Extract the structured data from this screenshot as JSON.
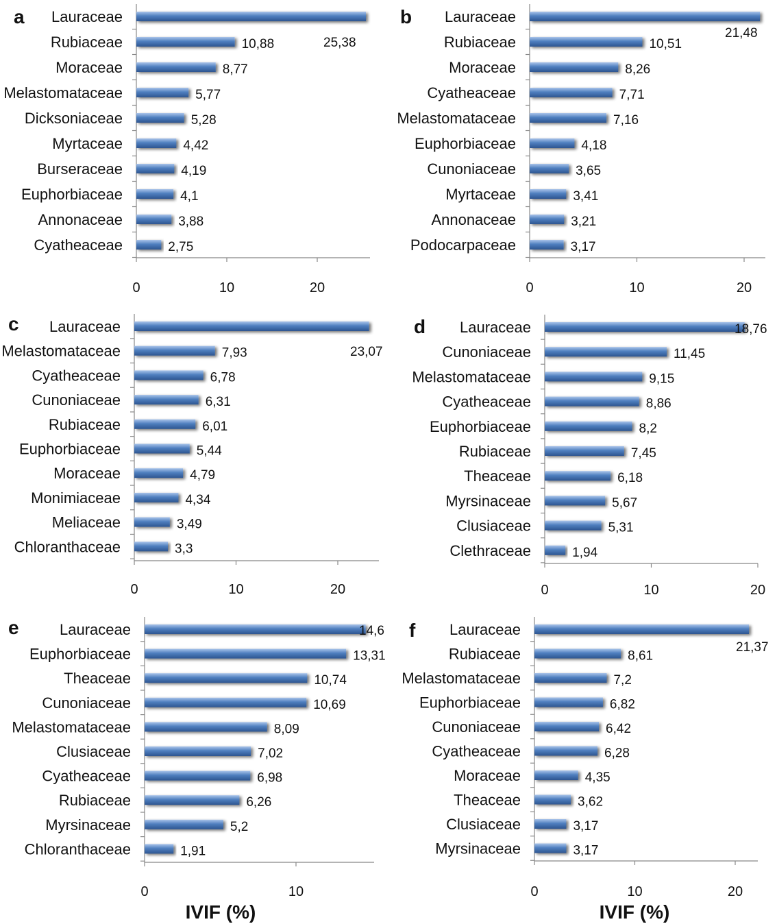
{
  "colors": {
    "bar": "#4f7fbf",
    "bar_dark": "#2d5590",
    "bar_light": "#9dbbe4",
    "axis": "#888888",
    "text": "#111111"
  },
  "xlabels": [
    "IVIF (%)",
    "IVIF (%)"
  ],
  "chart_data": [
    {
      "panel": "a",
      "type": "bar",
      "orientation": "horizontal",
      "categories": [
        "Lauraceae",
        "Rubiaceae",
        "Moraceae",
        "Melastomataceae",
        "Dicksoniaceae",
        "Myrtaceae",
        "Burseraceae",
        "Euphorbiaceae",
        "Annonaceae",
        "Cyatheaceae"
      ],
      "values": [
        25.38,
        10.88,
        8.77,
        5.77,
        5.28,
        4.42,
        4.19,
        4.1,
        3.88,
        2.75
      ],
      "value_labels": [
        "25,38",
        "10,88",
        "8,77",
        "5,77",
        "5,28",
        "4,42",
        "4,19",
        "4,1",
        "3,88",
        "2,75"
      ],
      "xticks": [
        "0",
        "10",
        "20"
      ],
      "xlim": [
        0,
        26
      ],
      "xlabel": "",
      "grid": false
    },
    {
      "panel": "b",
      "type": "bar",
      "orientation": "horizontal",
      "categories": [
        "Lauraceae",
        "Rubiaceae",
        "Moraceae",
        "Cyatheaceae",
        "Melastomataceae",
        "Euphorbiaceae",
        "Cunoniaceae",
        "Myrtaceae",
        "Annonaceae",
        "Podocarpaceae"
      ],
      "values": [
        21.48,
        10.51,
        8.26,
        7.71,
        7.16,
        4.18,
        3.65,
        3.41,
        3.21,
        3.17
      ],
      "value_labels": [
        "21,48",
        "10,51",
        "8,26",
        "7,71",
        "7,16",
        "4,18",
        "3,65",
        "3,41",
        "3,21",
        "3,17"
      ],
      "xticks": [
        "0",
        "10",
        "20"
      ],
      "xlim": [
        0,
        22
      ],
      "xlabel": "",
      "grid": false
    },
    {
      "panel": "c",
      "type": "bar",
      "orientation": "horizontal",
      "categories": [
        "Lauraceae",
        "Melastomataceae",
        "Cyatheaceae",
        "Cunoniaceae",
        "Rubiaceae",
        "Euphorbiaceae",
        "Moraceae",
        "Monimiaceae",
        "Meliaceae",
        "Chloranthaceae"
      ],
      "values": [
        23.07,
        7.93,
        6.78,
        6.31,
        6.01,
        5.44,
        4.79,
        4.34,
        3.49,
        3.3
      ],
      "value_labels": [
        "23,07",
        "7,93",
        "6,78",
        "6,31",
        "6,01",
        "5,44",
        "4,79",
        "4,34",
        "3,49",
        "3,3"
      ],
      "xticks": [
        "0",
        "10",
        "20"
      ],
      "xlim": [
        0,
        24
      ],
      "xlabel": "",
      "grid": false
    },
    {
      "panel": "d",
      "type": "bar",
      "orientation": "horizontal",
      "categories": [
        "Lauraceae",
        "Cunoniaceae",
        "Melastomataceae",
        "Cyatheaceae",
        "Euphorbiaceae",
        "Rubiaceae",
        "Theaceae",
        "Myrsinaceae",
        "Clusiaceae",
        "Clethraceae"
      ],
      "values": [
        18.76,
        11.45,
        9.15,
        8.86,
        8.2,
        7.45,
        6.18,
        5.67,
        5.31,
        1.94
      ],
      "value_labels": [
        "18,76",
        "11,45",
        "9,15",
        "8,86",
        "8,2",
        "7,45",
        "6,18",
        "5,67",
        "5,31",
        "1,94"
      ],
      "xticks": [
        "0",
        "10",
        "20"
      ],
      "xlim": [
        0,
        20
      ],
      "xlabel": "",
      "grid": false
    },
    {
      "panel": "e",
      "type": "bar",
      "orientation": "horizontal",
      "categories": [
        "Lauraceae",
        "Euphorbiaceae",
        "Theaceae",
        "Cunoniaceae",
        "Melastomataceae",
        "Clusiaceae",
        "Cyatheaceae",
        "Rubiaceae",
        "Myrsinaceae",
        "Chloranthaceae"
      ],
      "values": [
        14.6,
        13.31,
        10.74,
        10.69,
        8.09,
        7.02,
        6.98,
        6.26,
        5.2,
        1.91
      ],
      "value_labels": [
        "14,6",
        "13,31",
        "10,74",
        "10,69",
        "8,09",
        "7,02",
        "6,98",
        "6,26",
        "5,2",
        "1,91"
      ],
      "xticks": [
        "0",
        "10"
      ],
      "xlim": [
        0,
        15
      ],
      "xlabel": "IVIF (%)",
      "grid": false
    },
    {
      "panel": "f",
      "type": "bar",
      "orientation": "horizontal",
      "categories": [
        "Lauraceae",
        "Rubiaceae",
        "Melastomataceae",
        "Euphorbiaceae",
        "Cunoniaceae",
        "Cyatheaceae",
        "Moraceae",
        "Theaceae",
        "Clusiaceae",
        "Myrsinaceae"
      ],
      "values": [
        21.37,
        8.61,
        7.2,
        6.82,
        6.42,
        6.28,
        4.35,
        3.62,
        3.17,
        3.17
      ],
      "value_labels": [
        "21,37",
        "8,61",
        "7,2",
        "6,82",
        "6,42",
        "6,28",
        "4,35",
        "3,62",
        "3,17",
        "3,17"
      ],
      "xticks": [
        "0",
        "10",
        "20"
      ],
      "xlim": [
        0,
        22
      ],
      "xlabel": "IVIF (%)",
      "grid": false
    }
  ]
}
